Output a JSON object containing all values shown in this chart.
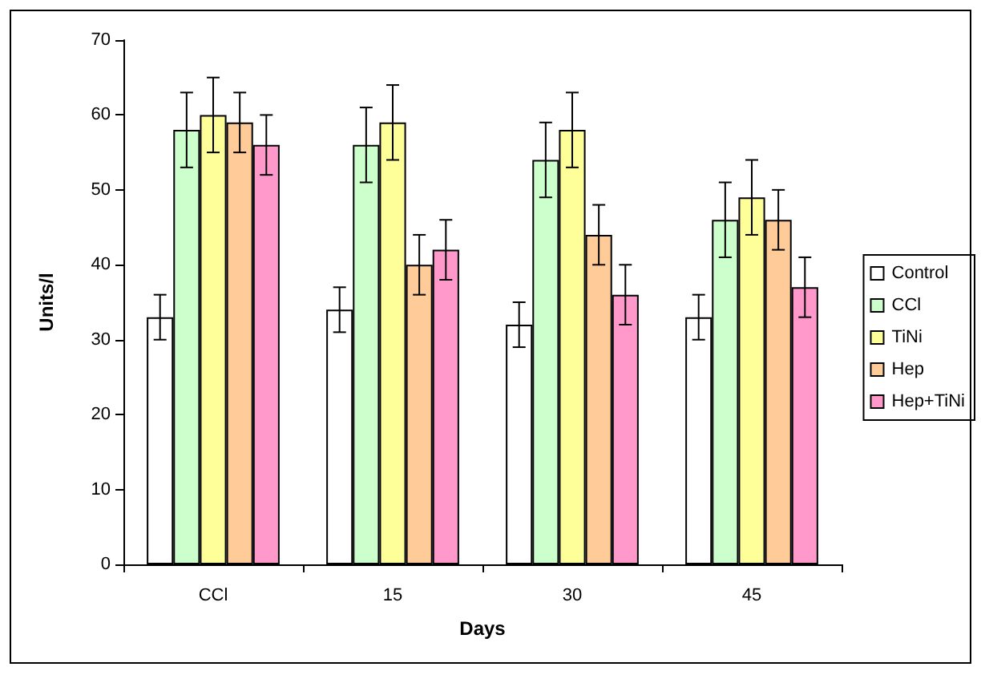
{
  "chart_data": {
    "type": "bar",
    "xlabel": "Days",
    "ylabel": "Units/l",
    "categories": [
      "CCl",
      "15",
      "30",
      "45"
    ],
    "series": [
      {
        "name": "Control",
        "color": "#ffffff",
        "values": [
          33,
          34,
          32,
          33
        ],
        "errors": [
          3,
          3,
          3,
          3
        ]
      },
      {
        "name": "CCl",
        "color": "#ccffcc",
        "values": [
          58,
          56,
          54,
          46
        ],
        "errors": [
          5,
          5,
          5,
          5
        ]
      },
      {
        "name": "TiNi",
        "color": "#ffff99",
        "values": [
          60,
          59,
          58,
          49
        ],
        "errors": [
          5,
          5,
          5,
          5
        ]
      },
      {
        "name": "Hep",
        "color": "#ffcc99",
        "values": [
          59,
          40,
          44,
          46
        ],
        "errors": [
          4,
          4,
          4,
          4
        ]
      },
      {
        "name": "Hep+TiNi",
        "color": "#ff99cc",
        "values": [
          56,
          42,
          36,
          37
        ],
        "errors": [
          4,
          4,
          4,
          4
        ]
      }
    ],
    "ylim": [
      0,
      70
    ],
    "yticks": [
      0,
      10,
      20,
      30,
      40,
      50,
      60,
      70
    ],
    "grid": false,
    "legend": "right"
  }
}
